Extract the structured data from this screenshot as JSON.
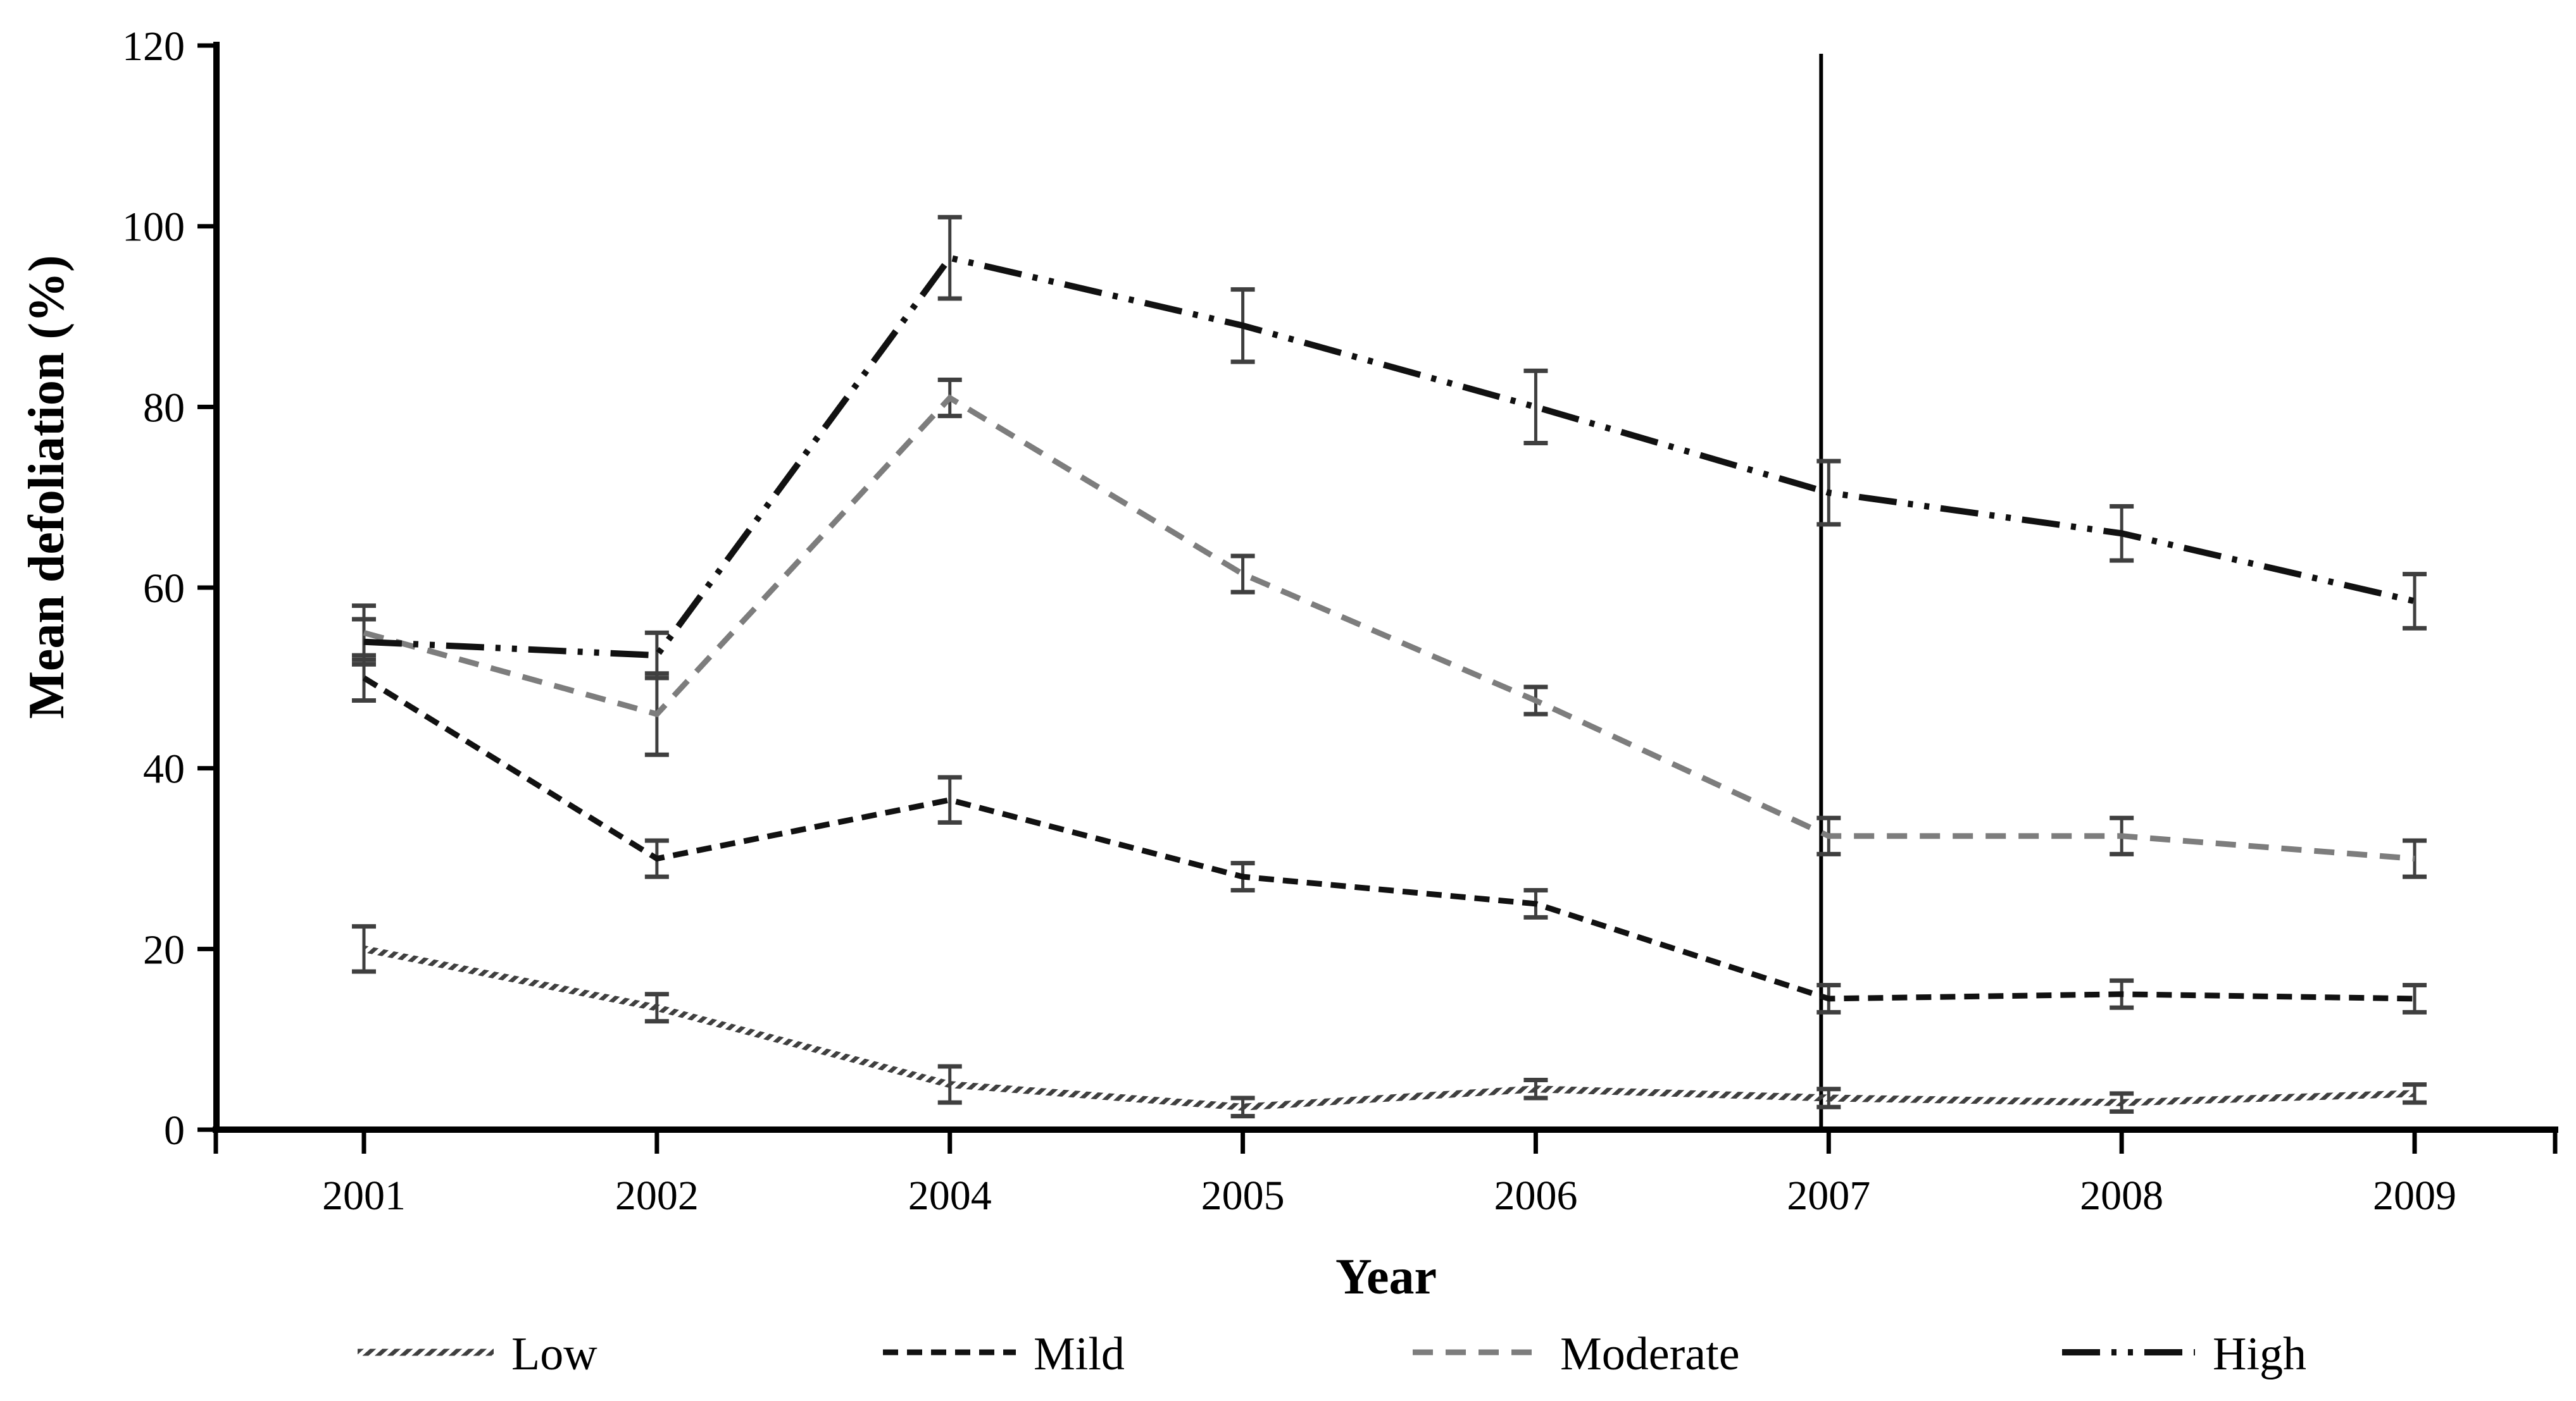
{
  "figure": {
    "background": "#ffffff",
    "axis_color": "#000000",
    "errorbar_color": "#3f3f3f",
    "black_series_color": "#111111",
    "gray_series_color": "#7d7d7d",
    "low_series_color": "#6f6f6f"
  },
  "chart_data": {
    "type": "line",
    "title": "",
    "xlabel": "Year",
    "ylabel": "Mean defoliation (%)",
    "x_categories": [
      "2001",
      "2002",
      "2004",
      "2005",
      "2006",
      "2007",
      "2008",
      "2009"
    ],
    "ylim": [
      0,
      120
    ],
    "yticks": [
      0,
      20,
      40,
      60,
      80,
      100,
      120
    ],
    "grid": false,
    "legend_position": "bottom",
    "error_bars": true,
    "annotations": [
      {
        "type": "vline",
        "at_category": "2007",
        "note": "vertical reference line"
      }
    ],
    "series": [
      {
        "name": "Low",
        "line_style": "hatched-solid",
        "color": "#6f6f6f",
        "values": [
          20,
          13.5,
          5,
          2.5,
          4.5,
          3.5,
          3,
          4
        ],
        "errors": [
          2.5,
          1.5,
          2,
          1,
          1,
          1,
          1,
          1
        ]
      },
      {
        "name": "Mild",
        "line_style": "dashed-dense",
        "color": "#111111",
        "values": [
          50,
          30,
          36.5,
          28,
          25,
          14.5,
          15,
          14.5
        ],
        "errors": [
          2.5,
          2,
          2.5,
          1.5,
          1.5,
          1.5,
          1.5,
          1.5
        ]
      },
      {
        "name": "Moderate",
        "line_style": "dashed",
        "color": "#7d7d7d",
        "values": [
          55,
          46,
          81,
          61.5,
          47.5,
          32.5,
          32.5,
          30
        ],
        "errors": [
          3,
          4.5,
          2,
          2,
          1.5,
          2,
          2,
          2
        ]
      },
      {
        "name": "High",
        "line_style": "dash-dot-dot",
        "color": "#111111",
        "values": [
          54,
          52.5,
          96.5,
          89,
          80,
          70.5,
          66,
          58.5
        ],
        "errors": [
          2.5,
          2.5,
          4.5,
          4,
          4,
          3.5,
          3,
          3
        ]
      }
    ]
  }
}
